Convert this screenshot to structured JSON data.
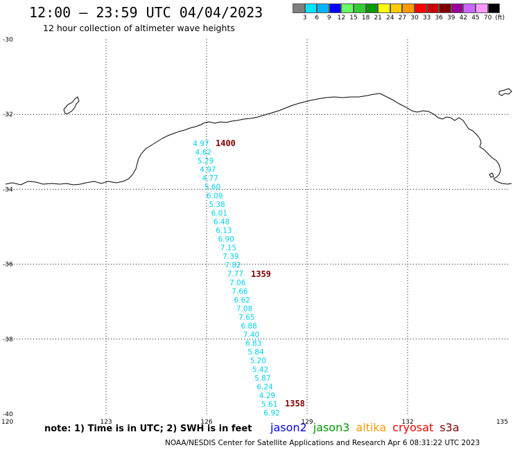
{
  "header": {
    "title": "12:00 – 23:59 UTC 04/04/2023",
    "subtitle": "12 hour collection of altimeter wave heights"
  },
  "legend": {
    "labels": [
      "3",
      "6",
      "9",
      "12",
      "15",
      "18",
      "21",
      "24",
      "27",
      "30",
      "33",
      "36",
      "39",
      "42",
      "45",
      "70",
      "(ft)"
    ],
    "colors": [
      "#7f7f7f",
      "#00e6ff",
      "#00b4ff",
      "#0000ff",
      "#66ff66",
      "#33cc33",
      "#009900",
      "#ffff00",
      "#ffcc00",
      "#ff9900",
      "#ff0000",
      "#cc0000",
      "#800000",
      "#990099",
      "#cc66ff",
      "#ff99ff",
      "#000000"
    ]
  },
  "axes": {
    "lat_labels": [
      "-30",
      "-32",
      "-34",
      "-36",
      "-38",
      "-40"
    ],
    "lon_labels": [
      "120",
      "123",
      "126",
      "129",
      "132",
      "135"
    ]
  },
  "track": {
    "color": "#00d0f0",
    "swh_values": [
      "4.97",
      "4.62",
      "5.29",
      "4.97",
      "4.77",
      "5.60",
      "6.09",
      "5.38",
      "6.01",
      "6.48",
      "6.13",
      "6.90",
      "7.15",
      "7.39",
      "7.82",
      "7.77",
      "7.06",
      "7.66",
      "6.62",
      "7.08",
      "7.65",
      "6.88",
      "7.40",
      "6.83",
      "5.84",
      "5.20",
      "5.42",
      "5.87",
      "6.24",
      "4.29",
      "5.61",
      "6.92"
    ],
    "time_labels": [
      "1400",
      "1359",
      "1358"
    ],
    "time_color": "#800000"
  },
  "footer": {
    "note": "note:  1) Time is in UTC; 2) SWH is in feet",
    "satellites": [
      {
        "name": "jason2",
        "color": "#0000ee"
      },
      {
        "name": "jason3",
        "color": "#009900"
      },
      {
        "name": "altika",
        "color": "#ff9900"
      },
      {
        "name": "cryosat",
        "color": "#ee0000"
      },
      {
        "name": "s3a",
        "color": "#800000"
      }
    ],
    "credit": "NOAA/NESDIS Center for Satellite Applications and Research   Apr  6 08:31:22 UTC 2023"
  }
}
